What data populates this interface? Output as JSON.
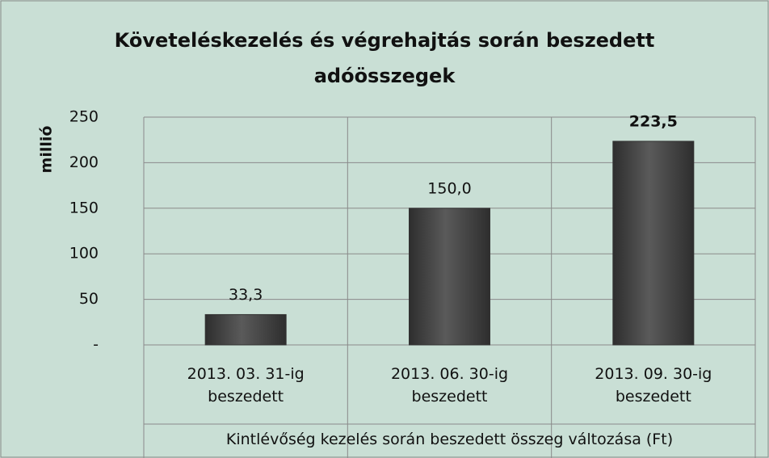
{
  "chart_data": {
    "type": "bar",
    "title": "Követeléskezelés és végrehajtás során beszedett adóösszegek",
    "ylabel": "millió",
    "xlabel": "Kintlévőség kezelés során beszedett összeg változása (Ft)",
    "categories": [
      "2013. 03. 31-ig beszedett",
      "2013. 06. 30-ig beszedett",
      "2013. 09. 30-ig beszedett"
    ],
    "values": [
      33.3,
      150.0,
      223.5
    ],
    "value_labels": [
      "33,3",
      "150,0",
      "223,5"
    ],
    "color": "#4f4f4f",
    "ylim": [
      0,
      250
    ],
    "yticks": [
      {
        "value": 0,
        "label": "-"
      },
      50,
      100,
      150,
      200,
      250
    ],
    "grid": true
  }
}
